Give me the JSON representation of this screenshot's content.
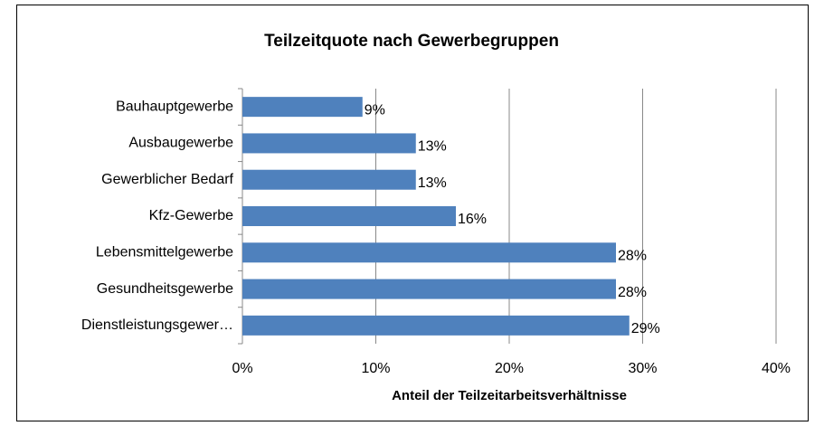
{
  "chart_data": {
    "type": "barh",
    "title": "Teilzeitquote nach Gewerbegruppen",
    "x_label": "Anteil der Teilzeitarbeitsverhältnisse",
    "categories": [
      "Bauhauptgewerbe",
      "Ausbaugewerbe",
      "Gewerblicher Bedarf",
      "Kfz-Gewerbe",
      "Lebensmittelgewerbe",
      "Gesundheitsgewerbe",
      "Dienstleistungsgewer…"
    ],
    "values": [
      9,
      13,
      13,
      16,
      28,
      28,
      29
    ],
    "value_labels": [
      "9%",
      "13%",
      "13%",
      "16%",
      "28%",
      "28%",
      "29%"
    ],
    "color": "#4f81bd",
    "xlim": [
      0,
      40
    ],
    "xticks": [
      {
        "value": 0,
        "label": "0%"
      },
      {
        "value": 10,
        "label": "10%"
      },
      {
        "value": 20,
        "label": "20%"
      },
      {
        "value": 30,
        "label": "30%"
      },
      {
        "value": 40,
        "label": "40%"
      }
    ],
    "grid": true
  }
}
